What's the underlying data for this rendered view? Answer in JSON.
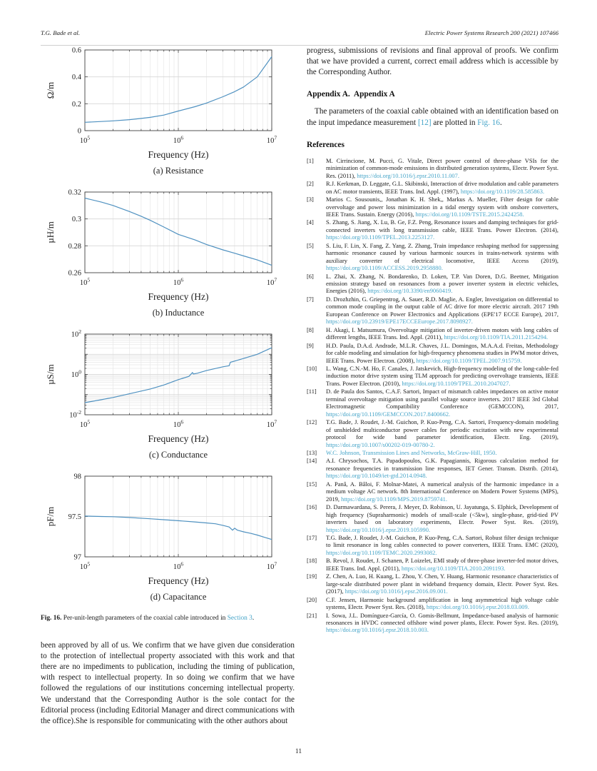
{
  "colors": {
    "accent": "#4f91c0",
    "link": "#45a4c8",
    "grid": "#d6d6d6",
    "grid_minor": "#e7e7e7",
    "axis": "#444444",
    "text": "#222222"
  },
  "header": {
    "left": "T.G. Bade et al.",
    "right": "Electric Power Systems Research 200 (2021) 107466"
  },
  "figure": {
    "label": "Fig. 16.",
    "caption_parts": [
      {
        "text": " Per-unit-length parameters of the coaxial cable introduced in "
      },
      {
        "text": "Section 3",
        "link": true
      },
      {
        "text": "."
      }
    ]
  },
  "left_paragraph": "been approved by all of us. We confirm that we have given due consideration to the protection of intellectual property associated with this work and that there are no impediments to publication, including the timing of publication, with respect to intellectual property. In so doing we confirm that we have followed the regulations of our institutions concerning intellectual property. We understand that the Corresponding Author is the sole contact for the Editorial process (including Editorial Manager and direct communications with the office).She is responsible for communicating with the other authors about",
  "right_column": {
    "top_paragraph": "progress, submissions of revisions and final approval of proofs. We confirm that we have provided a current, correct email address which is accessible by the Corresponding Author.",
    "appendix_heading": "Appendix A.  Appendix A",
    "appendix_paragraph_parts": [
      {
        "text": "The parameters of the coaxial cable obtained with an identification based on the input impedance measurement "
      },
      {
        "text": "[12]",
        "link": true
      },
      {
        "text": " are plotted in "
      },
      {
        "text": "Fig. 16",
        "link": true
      },
      {
        "text": "."
      }
    ],
    "references_heading": "References",
    "references": [
      {
        "num": "[1]",
        "text": "M. Cirrincione, M. Pucci, G. Vitale, Direct power control of three-phase VSIs for the minimization of common-mode emissions in distributed generation systems, Electr. Power Syst. Res. (2011), ",
        "doi": "https://doi.org/10.1016/j.epsr.2010.11.007."
      },
      {
        "num": "[2]",
        "text": "R.J. Kerkman, D. Leggate, G.L. Skibinski, Interaction of drive modulation and cable parameters on AC motor transients, IEEE Trans. Ind. Appl. (1997), ",
        "doi": "https://doi.org/10.1109/28.585863."
      },
      {
        "num": "[3]",
        "text": "Marios C. Sousounis,, Jonathan K. H. Shek,, Markus A. Mueller, Filter design for cable overvoltage and power loss minimization in a tidal energy system with onshore converters, IEEE Trans. Sustain. Energy (2016), ",
        "doi": "https://doi.org/10.1109/TSTE.2015.2424258."
      },
      {
        "num": "[4]",
        "text": "S. Zhang, S. Jiang, X. Lu, B. Ge, F.Z. Peng, Resonance issues and damping techniques for grid-connected inverters with long transmission cable, IEEE Trans. Power Electron. (2014), ",
        "doi": "https://doi.org/10.1109/TPEL.2013.2253127."
      },
      {
        "num": "[5]",
        "text": "S. Liu, F. Lin, X. Fang, Z. Yang, Z. Zhang, Train impedance reshaping method for suppressing harmonic resonance caused by various harmonic sources in trains-network systems with auxiliary converter of electrical locomotive, IEEE Access (2019), ",
        "doi": "https://doi.org/10.1109/ACCESS.2019.2958880."
      },
      {
        "num": "[6]",
        "text": "L. Zhai, X. Zhang, N. Bondarenko, D. Loken, T.P. Van Doren, D.G. Beetner, Mitigation emission strategy based on resonances from a power inverter system in electric vehicles, Energies (2016), ",
        "doi": "https://doi.org/10.3390/en9060419."
      },
      {
        "num": "[7]",
        "text": "D. Drozhzhin, G. Griepentrog, A. Sauer, R.D. Maglie, A. Engler, Investigation on differential to common mode coupling in the output cable of AC drive for more electric aircraft. 2017 19th European Conference on Power Electronics and Applications (EPE'17 ECCE Europe), 2017, ",
        "doi": "https://doi.org/10.23919/EPE17ECCEEurope.2017.8098927."
      },
      {
        "num": "[8]",
        "text": "H. Akagi, I. Matsumura, Overvoltage mitigation of inverter-driven motors with long cables of different lengths, IEEE Trans. Ind. Appl. (2011), ",
        "doi": "https://doi.org/10.1109/TIA.2011.2154294."
      },
      {
        "num": "[9]",
        "text": "H.D. Paula, D.A.d. Andrade, M.L.R. Chaves, J.L. Domingos, M.A.A.d. Freitas, Methodology for cable modeling and simulation for high-frequency phenomena studies in PWM motor drives, IEEE Trans. Power Electron. (2008), ",
        "doi": "https://doi.org/10.1109/TPEL.2007.915759."
      },
      {
        "num": "[10]",
        "text": "L. Wang, C.N.-M. Ho, F. Canales, J. Jatskevich, High-frequency modeling of the long-cable-fed induction motor drive system using TLM approach for predicting overvoltage transients, IEEE Trans. Power Electron. (2010), ",
        "doi": "https://doi.org/10.1109/TPEL.2010.2047027."
      },
      {
        "num": "[11]",
        "text": "D. de Paula dos Santos, C.A.F. Sartori, Impact of mismatch cables impedances on active motor terminal overvoltage mitigation using parallel voltage source inverters. 2017 IEEE 3rd Global Electromagnetic Compatibility Conference (GEMCCON), 2017, ",
        "doi": "https://doi.org/10.1109/GEMCCON.2017.8400662."
      },
      {
        "num": "[12]",
        "text": "T.G. Bade, J. Roudet, J.-M. Guichon, P. Kuo-Peng, C.A. Sartori, Frequency-domain modeling of unshielded multiconductor power cables for periodic excitation with new experimental protocol for wide band parameter identification, Electr. Eng. (2019), ",
        "doi": "https://doi.org/10.1007/s00202-019-00780-2."
      },
      {
        "num": "[13]",
        "text": "",
        "doi": "W.C. Johnson, Transmission Lines and Networks, McGraw-Hill, 1950."
      },
      {
        "num": "[14]",
        "text": "A.I. Chrysochos, T.A. Papadopoulos, G.K. Papagiannis, Rigorous calculation method for resonance frequencies in transmission line responses, IET Gener. Transm. Distrib. (2014), ",
        "doi": "https://doi.org/10.1049/iet-gtd.2014.0948."
      },
      {
        "num": "[15]",
        "text": "A. Panâ, A. Bâloi, F. Molnar-Matei, A numerical analysis of the harmonic impedance in a medium voltage AC network. 8th International Conference on Modern Power Systems (MPS), 2019, ",
        "doi": "https://doi.org/10.1109/MPS.2019.8759741."
      },
      {
        "num": "[16]",
        "text": "D. Darmawardana, S. Perera, J. Meyer, D. Robinson, U. Jayatunga, S. Elphick, Development of high frequency (Supraharmonic) models of small-scale (<5kw), single-phase, grid-tied PV inverters based on laboratory experiments, Electr. Power Syst. Res. (2019), ",
        "doi": "https://doi.org/10.1016/j.epsr.2019.105990."
      },
      {
        "num": "[17]",
        "text": "T.G. Bade, J. Roudet, J.-M. Guichon, P. Kuo-Peng, C.A. Sartori, Robust filter design technique to limit resonance in long cables connected to power converters, IEEE Trans. EMC (2020), ",
        "doi": "https://doi.org/10.1109/TEMC.2020.2993082."
      },
      {
        "num": "[18]",
        "text": "B. Revol, J. Roudet, J. Schanen, P. Loizelet, EMI study of three-phase inverter-fed motor drives, IEEE Trans. Ind. Appl. (2011), ",
        "doi": "https://doi.org/10.1109/TIA.2010.2091193."
      },
      {
        "num": "[19]",
        "text": "Z. Chen, A. Luo, H. Kuang, L. Zhou, Y. Chen, Y. Huang, Harmonic resonance characteristics of large-scale distributed power plant in wideband frequency domain, Electr. Power Syst. Res. (2017), ",
        "doi": "https://doi.org/10.1016/j.epsr.2016.09.001."
      },
      {
        "num": "[20]",
        "text": "C.F. Jensen, Harmonic background amplification in long asymmetrical high voltage cable systems, Electr. Power Syst. Res. (2018), ",
        "doi": "https://doi.org/10.1016/j.epsr.2018.03.009."
      },
      {
        "num": "[21]",
        "text": "I. Sowa, J.L. Domínguez-García, O. Gomis-Bellmunt, Impedance-based analysis of harmonic resonances in HVDC connected offshore wind power plants, Electr. Power Syst. Res. (2019), ",
        "doi": "https://doi.org/10.1016/j.epsr.2018.10.003."
      }
    ]
  },
  "footer": {
    "page_number": "11"
  },
  "chart_data": [
    {
      "type": "line",
      "title": "(a) Resistance",
      "xlabel": "Frequency (Hz)",
      "ylabel": "Ω/m",
      "xscale": "log",
      "xlim_exp": [
        5,
        7
      ],
      "yscale": "linear",
      "ylim": [
        0,
        0.6
      ],
      "yticks": [
        0,
        0.2,
        0.4,
        0.6
      ],
      "ytick_labels": [
        "0",
        "0.2",
        "0.4",
        "0.6"
      ],
      "xtick_labels": [
        "10^5",
        "10^6",
        "10^7"
      ],
      "grid": true,
      "legend": "none",
      "x": [
        100000,
        150000,
        200000,
        300000,
        400000,
        500000,
        700000,
        1000000,
        1500000,
        2000000,
        3000000,
        4000000,
        5000000,
        7000000,
        10000000
      ],
      "y": [
        0.062,
        0.068,
        0.073,
        0.082,
        0.091,
        0.099,
        0.116,
        0.146,
        0.178,
        0.205,
        0.252,
        0.29,
        0.325,
        0.4,
        0.55
      ]
    },
    {
      "type": "line",
      "title": "(b) Inductance",
      "xlabel": "Frequency (Hz)",
      "ylabel": "µH/m",
      "xscale": "log",
      "xlim_exp": [
        5,
        7
      ],
      "yscale": "linear",
      "ylim": [
        0.26,
        0.32
      ],
      "yticks": [
        0.26,
        0.28,
        0.3,
        0.32
      ],
      "ytick_labels": [
        "0.26",
        "0.28",
        "0.3",
        "0.32"
      ],
      "xtick_labels": [
        "10^5",
        "10^6",
        "10^7"
      ],
      "grid": true,
      "legend": "none",
      "x": [
        100000,
        150000,
        200000,
        300000,
        400000,
        500000,
        700000,
        1000000,
        1500000,
        2000000,
        3000000,
        4000000,
        5000000,
        7000000,
        10000000
      ],
      "y": [
        0.3155,
        0.3125,
        0.31,
        0.3055,
        0.302,
        0.299,
        0.294,
        0.2885,
        0.2845,
        0.281,
        0.277,
        0.2745,
        0.2725,
        0.2695,
        0.2655
      ]
    },
    {
      "type": "line",
      "title": "(c) Conductance",
      "xlabel": "Frequency (Hz)",
      "ylabel": "µS/m",
      "xscale": "log",
      "xlim_exp": [
        5,
        7
      ],
      "yscale": "log",
      "ylim": [
        -2,
        2
      ],
      "yticks": [
        -2,
        0,
        2
      ],
      "ytick_labels": [
        "10^-2",
        "10^0",
        "10^2"
      ],
      "xtick_labels": [
        "10^5",
        "10^6",
        "10^7"
      ],
      "grid": true,
      "legend": "none",
      "x": [
        100000,
        150000,
        200000,
        300000,
        500000,
        700000,
        1000000,
        1300000,
        1420000,
        1450000,
        1600000,
        2000000,
        3000000,
        3500000,
        3600000,
        4000000,
        5000000,
        7000000,
        10000000
      ],
      "y": [
        0.04,
        0.056,
        0.072,
        0.11,
        0.19,
        0.3,
        0.55,
        0.8,
        1.25,
        1.05,
        1.15,
        1.55,
        2.4,
        2.7,
        4.0,
        4.6,
        6.2,
        10,
        21
      ]
    },
    {
      "type": "line",
      "title": "(d) Capacitance",
      "xlabel": "Frequency (Hz)",
      "ylabel": "pF/m",
      "xscale": "log",
      "xlim_exp": [
        5,
        7
      ],
      "yscale": "linear",
      "ylim": [
        97,
        98
      ],
      "yticks": [
        97,
        97.5,
        98
      ],
      "ytick_labels": [
        "97",
        "97.5",
        "98"
      ],
      "xtick_labels": [
        "10^5",
        "10^6",
        "10^7"
      ],
      "grid": true,
      "legend": "none",
      "x": [
        100000,
        150000,
        200000,
        300000,
        500000,
        700000,
        1000000,
        1500000,
        2000000,
        2500000,
        3000000,
        3500000,
        3800000,
        4000000,
        4300000,
        5000000,
        6000000,
        7000000,
        8500000,
        10000000
      ],
      "y": [
        97.505,
        97.5,
        97.497,
        97.488,
        97.472,
        97.46,
        97.448,
        97.433,
        97.42,
        97.41,
        97.39,
        97.37,
        97.33,
        97.355,
        97.33,
        97.31,
        97.29,
        97.27,
        97.24,
        97.215
      ]
    }
  ]
}
